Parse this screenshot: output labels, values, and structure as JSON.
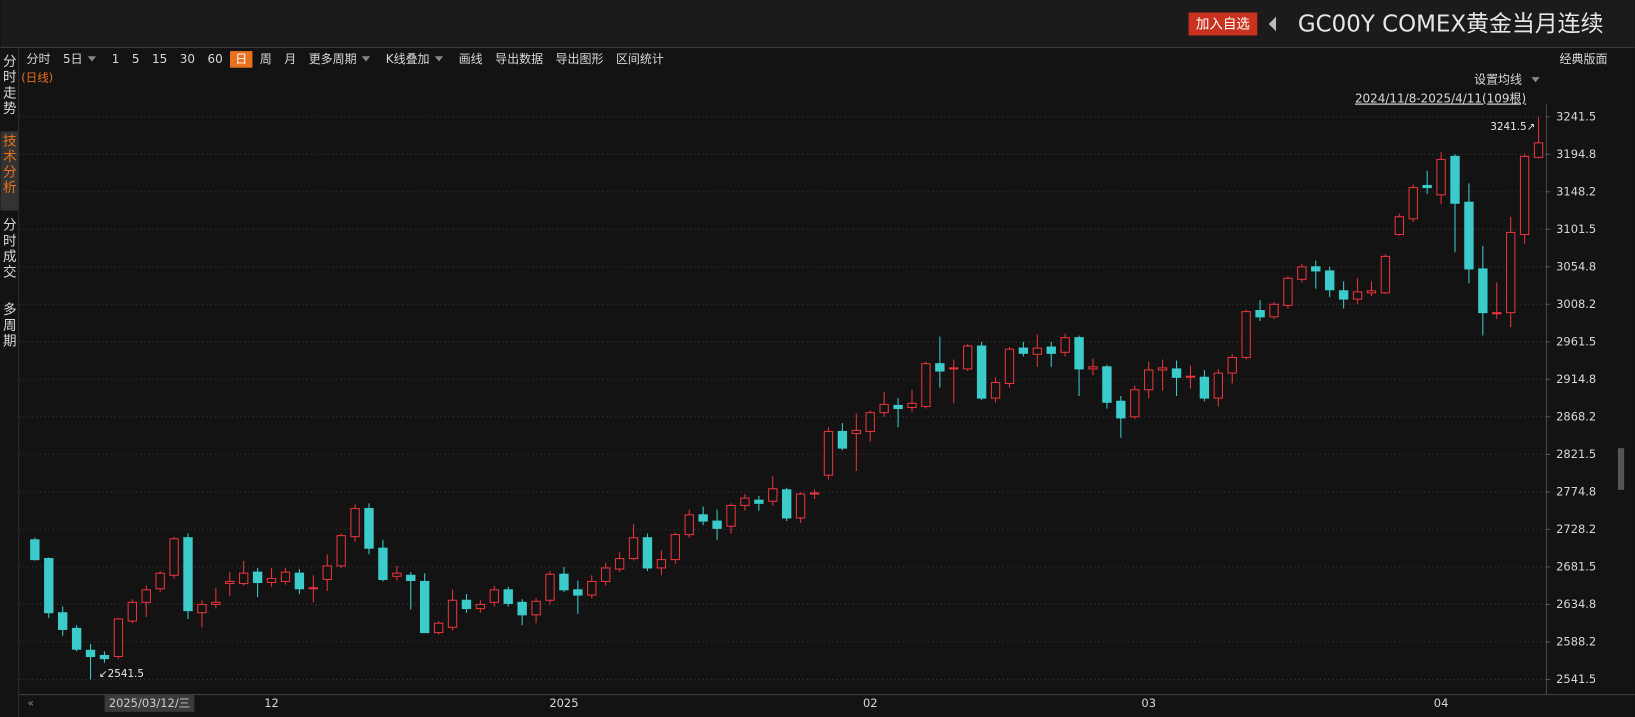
{
  "ui": {
    "add_watchlist": "加入自选",
    "symbol_title": "GC00Y COMEX黄金当月连续",
    "toolbar": [
      {
        "label": "分时"
      },
      {
        "label": "5日",
        "dropdown": true
      },
      {
        "label": "1"
      },
      {
        "label": "5"
      },
      {
        "label": "15"
      },
      {
        "label": "30"
      },
      {
        "label": "60"
      },
      {
        "label": "日"
      },
      {
        "label": "周"
      },
      {
        "label": "月"
      },
      {
        "label": "更多周期",
        "dropdown": true
      },
      {
        "label": "K线叠加",
        "dropdown": true
      },
      {
        "label": "画线"
      },
      {
        "label": "导出数据"
      },
      {
        "label": "导出图形"
      },
      {
        "label": "区间统计"
      }
    ],
    "active_tool_index": 7,
    "layout_button": "经典版面",
    "side_tabs": [
      "分时走势",
      "技术分析",
      "分时成交",
      "多周期"
    ],
    "active_side_tab_index": 1,
    "period_label": "(日线)",
    "ma_settings": "设置均线",
    "range_info": "2024/11/8-2025/4/11(109根)",
    "cursor_date": "2025/03/12/三"
  },
  "chart_data": {
    "type": "candlestick",
    "categories": [
      null,
      null,
      null,
      null,
      null,
      null,
      null,
      null,
      null,
      null,
      null,
      null,
      null,
      null,
      null,
      null,
      null,
      "12",
      null,
      null,
      null,
      null,
      null,
      null,
      null,
      null,
      null,
      null,
      null,
      null,
      null,
      null,
      null,
      null,
      null,
      null,
      null,
      null,
      "2025",
      null,
      null,
      null,
      null,
      null,
      null,
      null,
      null,
      null,
      null,
      null,
      null,
      null,
      null,
      null,
      null,
      null,
      null,
      null,
      null,
      null,
      "02",
      null,
      null,
      null,
      null,
      null,
      null,
      null,
      null,
      null,
      null,
      null,
      null,
      null,
      null,
      null,
      null,
      null,
      null,
      null,
      "03",
      null,
      null,
      null,
      null,
      null,
      null,
      null,
      null,
      null,
      null,
      null,
      null,
      null,
      null,
      null,
      null,
      null,
      null,
      null,
      null,
      "04",
      null,
      null,
      null,
      null,
      null,
      null,
      null
    ],
    "open": [
      2715.2,
      2691.9,
      2624.5,
      2605.0,
      2577.8,
      2571.3,
      2570.0,
      2614.1,
      2637.4,
      2654.3,
      2671.1,
      2717.8,
      2624.5,
      2634.8,
      2660.8,
      2660.8,
      2675.0,
      2662.1,
      2663.4,
      2673.7,
      2654.3,
      2665.9,
      2682.8,
      2719.1,
      2754.1,
      2704.8,
      2669.8,
      2671.1,
      2663.4,
      2599.8,
      2606.3,
      2640.0,
      2629.7,
      2637.4,
      2653.0,
      2637.4,
      2621.9,
      2640.0,
      2672.4,
      2653.0,
      2646.5,
      2663.4,
      2678.9,
      2691.9,
      2717.8,
      2680.2,
      2690.6,
      2721.7,
      2746.3,
      2738.5,
      2732.1,
      2758.0,
      2764.5,
      2763.2,
      2777.4,
      2742.4,
      2772.2,
      2795.6,
      2850.0,
      2847.4,
      2850.0,
      2873.4,
      2882.4,
      2879.8,
      2881.1,
      2934.3,
      2927.8,
      2927.8,
      2956.3,
      2891.5,
      2909.7,
      2953.7,
      2946.0,
      2955.0,
      2948.5,
      2966.7,
      2927.8,
      2930.4,
      2887.6,
      2868.2,
      2901.9,
      2926.5,
      2927.8,
      2917.4,
      2917.4,
      2891.5,
      2922.6,
      2942.1,
      3000.4,
      2992.6,
      3006.9,
      3039.3,
      3054.8,
      3049.7,
      3025.0,
      3014.7,
      3022.4,
      3022.4,
      3095.0,
      3114.5,
      3156.0,
      3144.3,
      3192.2,
      3135.2,
      3052.2,
      2996.5,
      2997.8,
      3095.0,
      3191.0
    ],
    "high": [
      2717.8,
      2693.2,
      2632.2,
      2608.9,
      2585.6,
      2576.5,
      2618.0,
      2641.3,
      2658.2,
      2676.3,
      2719.1,
      2723.0,
      2640.0,
      2655.6,
      2675.0,
      2689.3,
      2680.2,
      2680.2,
      2680.2,
      2678.9,
      2671.1,
      2697.1,
      2723.0,
      2759.3,
      2760.6,
      2715.2,
      2682.8,
      2675.0,
      2673.7,
      2614.1,
      2653.0,
      2647.8,
      2640.0,
      2658.2,
      2656.9,
      2641.3,
      2642.6,
      2676.3,
      2681.5,
      2664.6,
      2671.1,
      2686.7,
      2699.7,
      2734.7,
      2723.0,
      2702.2,
      2724.3,
      2752.8,
      2756.7,
      2752.8,
      2760.6,
      2772.2,
      2769.7,
      2794.3,
      2780.0,
      2774.8,
      2777.4,
      2855.2,
      2860.4,
      2872.1,
      2876.0,
      2899.3,
      2891.5,
      2901.9,
      2936.9,
      2968.0,
      2939.5,
      2958.9,
      2961.5,
      2917.4,
      2955.0,
      2961.5,
      2970.6,
      2961.5,
      2971.9,
      2969.3,
      2940.8,
      2933.0,
      2894.1,
      2907.1,
      2936.9,
      2939.5,
      2938.2,
      2931.7,
      2926.5,
      2927.8,
      2946.0,
      3001.7,
      3013.3,
      3010.8,
      3043.2,
      3058.7,
      3062.6,
      3054.8,
      3036.7,
      3040.6,
      3036.7,
      3070.4,
      3121.0,
      3157.2,
      3174.1,
      3197.4,
      3194.8,
      3158.5,
      3080.8,
      3035.4,
      3117.1,
      3194.8,
      3241.5
    ],
    "low": [
      2689.3,
      2618.0,
      2595.9,
      2576.5,
      2541.5,
      2562.2,
      2567.4,
      2611.5,
      2619.3,
      2650.4,
      2667.2,
      2616.7,
      2606.3,
      2629.7,
      2645.2,
      2658.2,
      2643.9,
      2656.9,
      2659.5,
      2647.8,
      2637.4,
      2651.7,
      2680.2,
      2712.6,
      2697.1,
      2663.4,
      2664.6,
      2628.4,
      2599.8,
      2597.2,
      2602.4,
      2624.5,
      2624.5,
      2632.2,
      2632.2,
      2608.9,
      2611.5,
      2634.8,
      2650.4,
      2623.2,
      2642.6,
      2658.2,
      2675.0,
      2689.3,
      2676.3,
      2671.1,
      2685.4,
      2717.8,
      2733.4,
      2715.2,
      2723.0,
      2751.5,
      2751.5,
      2758.0,
      2738.5,
      2736.0,
      2765.8,
      2790.4,
      2826.7,
      2800.8,
      2837.1,
      2868.2,
      2855.2,
      2874.7,
      2878.5,
      2904.5,
      2885.0,
      2925.2,
      2888.9,
      2886.3,
      2904.5,
      2943.4,
      2930.4,
      2930.4,
      2943.4,
      2894.1,
      2920.0,
      2878.5,
      2842.2,
      2865.6,
      2891.5,
      2900.6,
      2894.1,
      2903.2,
      2887.6,
      2881.1,
      2909.7,
      2939.5,
      2987.4,
      2990.0,
      3003.0,
      3035.4,
      3027.6,
      3017.2,
      3003.0,
      3008.2,
      3018.5,
      3021.1,
      3093.7,
      3110.6,
      3145.6,
      3132.6,
      3073.0,
      3034.1,
      2969.3,
      2990.0,
      2979.7,
      3083.4,
      3189.7
    ],
    "close": [
      2690.6,
      2624.5,
      2603.7,
      2579.1,
      2570.0,
      2567.4,
      2616.7,
      2637.4,
      2653.0,
      2673.7,
      2716.5,
      2627.1,
      2634.8,
      2637.4,
      2663.4,
      2673.7,
      2662.1,
      2667.2,
      2675.0,
      2654.3,
      2655.6,
      2682.8,
      2720.4,
      2754.1,
      2704.8,
      2665.9,
      2673.7,
      2664.6,
      2599.8,
      2611.5,
      2640.0,
      2629.7,
      2634.8,
      2653.0,
      2636.1,
      2621.9,
      2638.7,
      2672.4,
      2653.0,
      2646.5,
      2663.4,
      2680.2,
      2691.9,
      2717.8,
      2680.2,
      2690.6,
      2721.7,
      2746.3,
      2738.5,
      2729.5,
      2758.0,
      2767.1,
      2760.6,
      2778.7,
      2742.4,
      2772.2,
      2773.5,
      2850.0,
      2829.3,
      2851.3,
      2873.4,
      2883.7,
      2878.5,
      2885.0,
      2934.3,
      2925.2,
      2929.1,
      2956.3,
      2891.5,
      2911.0,
      2952.4,
      2947.2,
      2953.7,
      2947.2,
      2966.7,
      2927.8,
      2930.4,
      2886.3,
      2866.9,
      2901.9,
      2926.5,
      2929.1,
      2917.4,
      2918.7,
      2891.5,
      2922.6,
      2942.1,
      2999.1,
      2992.6,
      3008.2,
      3040.6,
      3054.8,
      3049.7,
      3026.3,
      3014.7,
      3023.7,
      3025.0,
      3067.8,
      3117.1,
      3153.4,
      3153.4,
      3188.4,
      3133.9,
      3052.2,
      2997.8,
      2997.8,
      3097.6,
      3192.2,
      3209.1
    ],
    "up_color": "#e8343a",
    "down_color": "#3ccbcb",
    "ylim": [
      2524.6,
      3257.1
    ],
    "yticks": [
      2541.5,
      2588.2,
      2634.8,
      2681.5,
      2728.2,
      2774.8,
      2821.5,
      2868.2,
      2914.8,
      2961.5,
      3008.2,
      3054.8,
      3101.5,
      3148.2,
      3194.8,
      3241.5
    ],
    "grid": true,
    "annotations": [
      {
        "value": 3241.5,
        "label": "3241.5↗"
      },
      {
        "value": 2541.5,
        "label": "↙2541.5"
      }
    ]
  }
}
